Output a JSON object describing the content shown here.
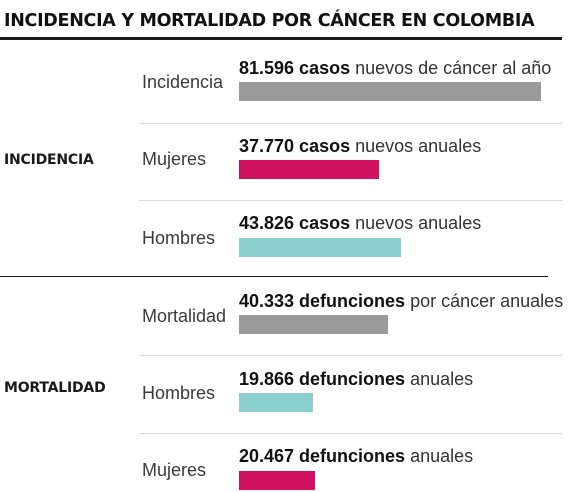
{
  "title": "INCIDENCIA Y MORTALIDAD POR CÁNCER EN COLOMBIA",
  "chart_data": {
    "type": "bar",
    "sections": [
      {
        "label": "INCIDENCIA",
        "rows": [
          {
            "label": "Incidencia",
            "value": 81596,
            "value_text": "81.596 casos",
            "desc": "nuevos de cáncer al año",
            "color": "#9b9b9b"
          },
          {
            "label": "Mujeres",
            "value": 37770,
            "value_text": "37.770 casos",
            "desc": "nuevos anuales",
            "color": "#d0115f"
          },
          {
            "label": "Hombres",
            "value": 43826,
            "value_text": "43.826 casos",
            "desc": "nuevos anuales",
            "color": "#8bd0cf"
          }
        ]
      },
      {
        "label": "MORTALIDAD",
        "rows": [
          {
            "label": "Mortalidad",
            "value": 40333,
            "value_text": "40.333 defunciones",
            "desc": "por cáncer anuales",
            "color": "#9b9b9b"
          },
          {
            "label": "Hombres",
            "value": 19866,
            "value_text": "19.866 defunciones",
            "desc": "anuales",
            "color": "#8bd0cf"
          },
          {
            "label": "Mujeres",
            "value": 20467,
            "value_text": "20.467 defunciones",
            "desc": "anuales",
            "color": "#d0115f"
          }
        ]
      }
    ]
  }
}
